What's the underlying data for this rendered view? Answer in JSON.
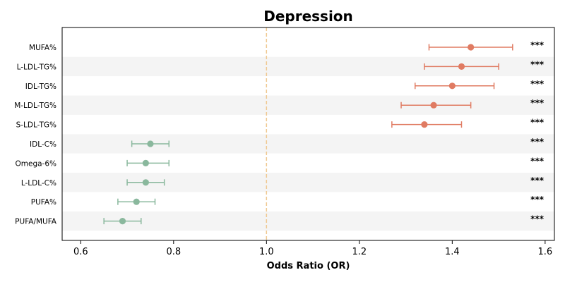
{
  "chart_data": {
    "type": "forest",
    "title": "Depression",
    "xlabel": "Odds Ratio (OR)",
    "xlim": [
      0.56,
      1.62
    ],
    "xticks": [
      0.6,
      0.8,
      1.0,
      1.2,
      1.4,
      1.6
    ],
    "xtick_labels": [
      "0.6",
      "0.8",
      "1.0",
      "1.2",
      "1.4",
      "1.6"
    ],
    "reference_line": 1.0,
    "categories": [
      "MUFA%",
      "L-LDL-TG%",
      "IDL-TG%",
      "M-LDL-TG%",
      "S-LDL-TG%",
      "IDL-C%",
      "Omega-6%",
      "L-LDL-C%",
      "PUFA%",
      "PUFA/MUFA"
    ],
    "or": [
      1.44,
      1.42,
      1.4,
      1.36,
      1.34,
      0.75,
      0.74,
      0.74,
      0.72,
      0.69
    ],
    "ci_low": [
      1.35,
      1.34,
      1.32,
      1.29,
      1.27,
      0.71,
      0.7,
      0.7,
      0.68,
      0.65
    ],
    "ci_high": [
      1.53,
      1.5,
      1.49,
      1.44,
      1.42,
      0.79,
      0.79,
      0.78,
      0.76,
      0.73
    ],
    "significance": [
      "***",
      "***",
      "***",
      "***",
      "***",
      "***",
      "***",
      "***",
      "***",
      "***"
    ],
    "colors": {
      "risk": "#e07b62",
      "protective": "#8ab89d",
      "reference": "#f0c890",
      "band": "#f4f4f4",
      "axis": "#000000"
    },
    "grid": false
  }
}
